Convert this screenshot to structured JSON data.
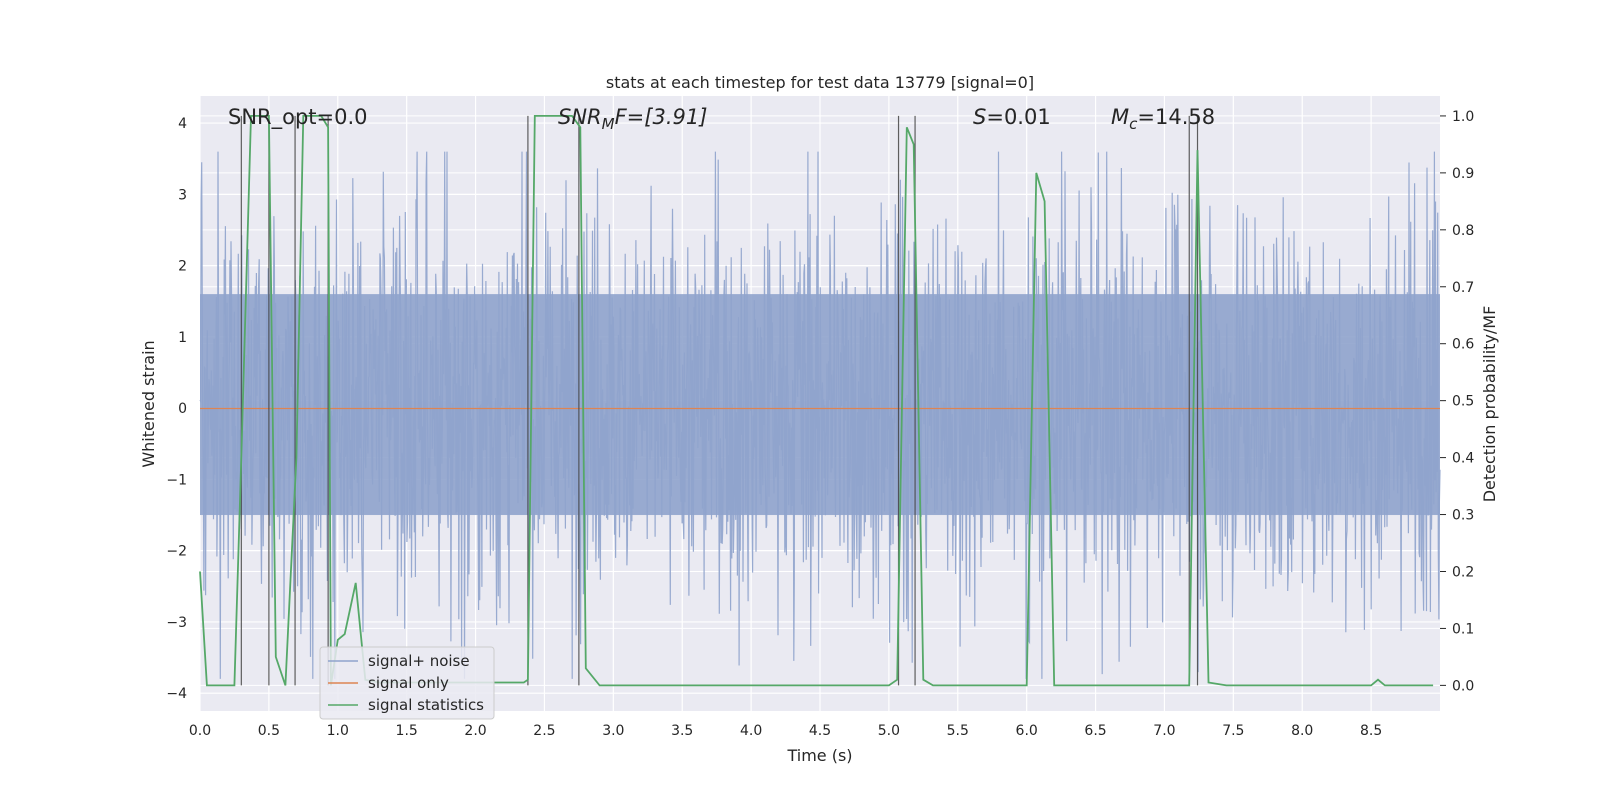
{
  "chart_data": {
    "type": "line",
    "title": "stats at each timestep for test data 13779 [signal=0]",
    "xlabel": "Time (s)",
    "ylabel": "Whitened strain",
    "y2label": "Detection probability/MF",
    "xlim": [
      0.0,
      9.0
    ],
    "ylim": [
      -4.25,
      4.38
    ],
    "y2lim": [
      -0.045,
      1.035
    ],
    "xticks": [
      0.0,
      0.5,
      1.0,
      1.5,
      2.0,
      2.5,
      3.0,
      3.5,
      4.0,
      4.5,
      5.0,
      5.5,
      6.0,
      6.5,
      7.0,
      7.5,
      8.0,
      8.5
    ],
    "xtick_labels": [
      "0.0",
      "0.5",
      "1.0",
      "1.5",
      "2.0",
      "2.5",
      "3.0",
      "3.5",
      "4.0",
      "4.5",
      "5.0",
      "5.5",
      "6.0",
      "6.5",
      "7.0",
      "7.5",
      "8.0",
      "8.5"
    ],
    "yticks": [
      -4,
      -3,
      -2,
      -1,
      0,
      1,
      2,
      3,
      4
    ],
    "ytick_labels": [
      "−4",
      "−3",
      "−2",
      "−1",
      "0",
      "1",
      "2",
      "3",
      "4"
    ],
    "y2ticks": [
      0.0,
      0.1,
      0.2,
      0.3,
      0.4,
      0.5,
      0.6,
      0.7,
      0.8,
      0.9,
      1.0
    ],
    "y2tick_labels": [
      "0.0",
      "0.1",
      "0.2",
      "0.3",
      "0.4",
      "0.5",
      "0.6",
      "0.7",
      "0.8",
      "0.9",
      "1.0"
    ],
    "series": [
      {
        "name": "signal+ noise",
        "axis": "left",
        "color": "#8fa3cc",
        "description": "dense whitened noise band, bulk about -1.5 to 1.6, spikes to about -3.8 and 3.6",
        "band_low": -1.5,
        "band_high": 1.6,
        "spike_min": -3.8,
        "spike_max": 3.6,
        "n_samples": 2200
      },
      {
        "name": "signal only",
        "axis": "left",
        "color": "#dd8452",
        "x": [
          0.0,
          9.0
        ],
        "y": [
          0.0,
          0.0
        ]
      },
      {
        "name": "signal statistics",
        "axis": "right",
        "color": "#55a868",
        "x": [
          0.0,
          0.05,
          0.25,
          0.3,
          0.37,
          0.5,
          0.55,
          0.62,
          0.7,
          0.75,
          0.88,
          0.93,
          0.95,
          1.0,
          1.05,
          1.13,
          1.2,
          1.3,
          1.4,
          2.2,
          2.35,
          2.38,
          2.43,
          2.7,
          2.76,
          2.8,
          2.9,
          3.0,
          5.0,
          5.06,
          5.13,
          5.18,
          5.25,
          5.32,
          5.4,
          5.5,
          6.0,
          6.07,
          6.13,
          6.2,
          7.1,
          7.18,
          7.24,
          7.32,
          7.45,
          8.5,
          8.55,
          8.6,
          8.95
        ],
        "y": [
          0.2,
          0.0,
          0.0,
          0.4,
          1.0,
          1.0,
          0.05,
          0.0,
          0.4,
          1.0,
          1.0,
          0.98,
          0.0,
          0.08,
          0.09,
          0.18,
          0.01,
          0.005,
          0.005,
          0.005,
          0.005,
          0.01,
          1.0,
          1.0,
          0.98,
          0.03,
          0.0,
          0.0,
          0.0,
          0.01,
          0.98,
          0.95,
          0.01,
          0.0,
          0.0,
          0.0,
          0.0,
          0.9,
          0.85,
          0.0,
          0.0,
          0.0,
          0.94,
          0.005,
          0.0,
          0.0,
          0.01,
          0.0,
          0.0
        ]
      }
    ],
    "vlines": [
      0.3,
      0.5,
      0.69,
      0.93,
      2.38,
      2.75,
      5.07,
      5.19,
      7.18,
      7.24
    ],
    "annotations": [
      {
        "text": "SNR_opt=0.0",
        "x": 0.2,
        "y": 4.05
      },
      {
        "text": "SNR_MF=[3.91]",
        "x": 2.6,
        "y": 4.05
      },
      {
        "text": "S=0.01",
        "x": 5.6,
        "y": 4.05
      },
      {
        "text": "M_c=14.58",
        "x": 6.6,
        "y": 4.05
      }
    ],
    "annotation_parts": {
      "snr_opt": "SNR_opt=0.0",
      "snr_mf_var": "SNR",
      "snr_mf_sub": "M",
      "snr_mf_rest": "F=[3.91]",
      "s_var": "S",
      "s_rest": "=0.01",
      "mc_var": "M",
      "mc_sub": "c",
      "mc_rest": "=14.58"
    },
    "legend": {
      "location": "lower-left",
      "entries": [
        "signal+ noise",
        "signal only",
        "signal statistics"
      ]
    },
    "grid": true,
    "background": "#eaeaf2"
  }
}
